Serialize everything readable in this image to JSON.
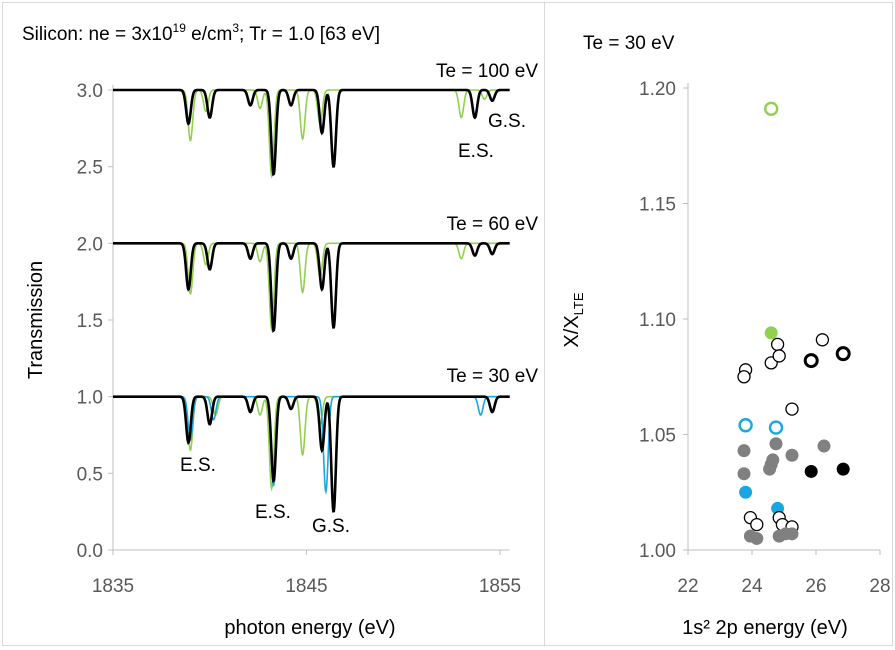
{
  "left": {
    "title": {
      "prefix": "Silicon: ne = 3x10",
      "sup": "19",
      "mid": " e/cm",
      "sup2": "3",
      "suffix": "; Tr = 1.0 [63 eV]"
    },
    "xlabel": "photon energy  (eV)",
    "ylabel": "Transmission",
    "xlim": [
      1835,
      1855.5
    ],
    "ylim": [
      0,
      3.0
    ],
    "xticks": [
      "1835",
      "1845",
      "1855"
    ],
    "yticks": [
      "0.0",
      "0.5",
      "1.0",
      "1.5",
      "2.0",
      "2.5",
      "3.0"
    ],
    "annotations": {
      "te100": "Te = 100 eV",
      "te60": "Te = 60 eV",
      "te30": "Te = 30 eV",
      "gs_top": "G.S.",
      "es_top": "E.S.",
      "es_low1": "E.S.",
      "es_low2": "E.S.",
      "gs_low": "G.S."
    }
  },
  "right": {
    "title": "Te = 30 eV",
    "xlabel": "1s² 2p energy (eV)",
    "ylabel_main": "X/X",
    "ylabel_sub": "LTE",
    "xlim": [
      22,
      28
    ],
    "ylim": [
      1.0,
      1.2
    ],
    "xticks": [
      "22",
      "24",
      "26",
      "28"
    ],
    "yticks": [
      "1.00",
      "1.05",
      "1.10",
      "1.15",
      "1.20"
    ]
  },
  "chart_data": [
    {
      "type": "line",
      "title": "Silicon: ne = 3x10^19 e/cm^3; Tr = 1.0 [63 eV]",
      "xlabel": "photon energy  (eV)",
      "ylabel": "Transmission",
      "xlim": [
        1835,
        1855.5
      ],
      "ylim": [
        0,
        3.0
      ],
      "colors": {
        "black": "#000000",
        "green": "#92d050",
        "blue": "#1aa7e0"
      },
      "panels": [
        {
          "label": "Te = 100 eV",
          "baseline": 3.0,
          "series": [
            {
              "color": "black",
              "lines": [
                [
                  1838.9,
                  0.22
                ],
                [
                  1840.0,
                  0.18
                ],
                [
                  1842.1,
                  0.1
                ],
                [
                  1843.3,
                  0.55
                ],
                [
                  1844.2,
                  0.1
                ],
                [
                  1845.8,
                  0.28
                ],
                [
                  1846.4,
                  0.5
                ],
                [
                  1853.7,
                  0.18
                ],
                [
                  1854.6,
                  0.07
                ]
              ]
            },
            {
              "color": "green",
              "lines": [
                [
                  1839.0,
                  0.33
                ],
                [
                  1839.8,
                  0.14
                ],
                [
                  1842.6,
                  0.12
                ],
                [
                  1843.2,
                  0.56
                ],
                [
                  1844.8,
                  0.32
                ],
                [
                  1845.7,
                  0.22
                ],
                [
                  1853.0,
                  0.18
                ],
                [
                  1854.2,
                  0.06
                ]
              ]
            }
          ]
        },
        {
          "label": "Te = 60 eV",
          "baseline": 2.0,
          "series": [
            {
              "color": "black",
              "lines": [
                [
                  1838.9,
                  0.3
                ],
                [
                  1840.0,
                  0.17
                ],
                [
                  1842.1,
                  0.1
                ],
                [
                  1843.3,
                  0.57
                ],
                [
                  1844.2,
                  0.1
                ],
                [
                  1845.8,
                  0.3
                ],
                [
                  1846.4,
                  0.55
                ],
                [
                  1853.7,
                  0.08
                ],
                [
                  1854.6,
                  0.07
                ]
              ]
            },
            {
              "color": "green",
              "lines": [
                [
                  1839.0,
                  0.33
                ],
                [
                  1839.8,
                  0.14
                ],
                [
                  1842.6,
                  0.12
                ],
                [
                  1843.2,
                  0.56
                ],
                [
                  1844.8,
                  0.32
                ],
                [
                  1845.7,
                  0.22
                ],
                [
                  1853.0,
                  0.1
                ]
              ]
            }
          ]
        },
        {
          "label": "Te = 30 eV",
          "baseline": 1.0,
          "series": [
            {
              "color": "black",
              "lines": [
                [
                  1838.9,
                  0.3
                ],
                [
                  1840.0,
                  0.18
                ],
                [
                  1842.1,
                  0.1
                ],
                [
                  1843.3,
                  0.55
                ],
                [
                  1844.2,
                  0.08
                ],
                [
                  1845.8,
                  0.35
                ],
                [
                  1846.4,
                  0.75
                ],
                [
                  1854.6,
                  0.1
                ]
              ]
            },
            {
              "color": "green",
              "lines": [
                [
                  1839.0,
                  0.35
                ],
                [
                  1840.3,
                  0.12
                ],
                [
                  1842.6,
                  0.12
                ],
                [
                  1843.2,
                  0.6
                ],
                [
                  1844.8,
                  0.38
                ],
                [
                  1845.7,
                  0.18
                ]
              ]
            },
            {
              "color": "blue",
              "lines": [
                [
                  1839.0,
                  0.28
                ],
                [
                  1840.2,
                  0.15
                ],
                [
                  1843.3,
                  0.58
                ],
                [
                  1846.0,
                  0.62
                ],
                [
                  1854.0,
                  0.12
                ]
              ]
            }
          ]
        }
      ]
    },
    {
      "type": "scatter",
      "title": "Te = 30 eV",
      "xlabel": "1s² 2p energy (eV)",
      "ylabel": "X/X_LTE",
      "xlim": [
        22,
        28
      ],
      "ylim": [
        1.0,
        1.2
      ],
      "points": [
        {
          "x": 24.6,
          "y": 1.191,
          "color": "#92d050",
          "filled": false
        },
        {
          "x": 24.6,
          "y": 1.094,
          "color": "#92d050",
          "filled": true
        },
        {
          "x": 23.8,
          "y": 1.078,
          "color": "#000000",
          "filled": false
        },
        {
          "x": 23.75,
          "y": 1.075,
          "color": "#000000",
          "filled": false
        },
        {
          "x": 24.6,
          "y": 1.081,
          "color": "#000000",
          "filled": false
        },
        {
          "x": 24.8,
          "y": 1.089,
          "color": "#000000",
          "filled": false
        },
        {
          "x": 24.85,
          "y": 1.084,
          "color": "#000000",
          "filled": false
        },
        {
          "x": 26.2,
          "y": 1.091,
          "color": "#000000",
          "filled": false
        },
        {
          "x": 25.85,
          "y": 1.082,
          "color": "#000000",
          "filled": false,
          "bold": true
        },
        {
          "x": 26.85,
          "y": 1.085,
          "color": "#000000",
          "filled": false,
          "bold": true
        },
        {
          "x": 25.25,
          "y": 1.061,
          "color": "#000000",
          "filled": false
        },
        {
          "x": 23.8,
          "y": 1.054,
          "color": "#1aa7e0",
          "filled": false
        },
        {
          "x": 24.75,
          "y": 1.053,
          "color": "#1aa7e0",
          "filled": false
        },
        {
          "x": 23.75,
          "y": 1.043,
          "color": "#808080",
          "filled": true
        },
        {
          "x": 24.75,
          "y": 1.046,
          "color": "#808080",
          "filled": true
        },
        {
          "x": 24.6,
          "y": 1.037,
          "color": "#808080",
          "filled": true
        },
        {
          "x": 24.65,
          "y": 1.039,
          "color": "#808080",
          "filled": true
        },
        {
          "x": 25.25,
          "y": 1.041,
          "color": "#808080",
          "filled": true
        },
        {
          "x": 26.25,
          "y": 1.045,
          "color": "#808080",
          "filled": true
        },
        {
          "x": 23.75,
          "y": 1.033,
          "color": "#808080",
          "filled": true
        },
        {
          "x": 24.55,
          "y": 1.035,
          "color": "#808080",
          "filled": true
        },
        {
          "x": 25.85,
          "y": 1.034,
          "color": "#000000",
          "filled": true
        },
        {
          "x": 26.85,
          "y": 1.035,
          "color": "#000000",
          "filled": true
        },
        {
          "x": 23.8,
          "y": 1.025,
          "color": "#1aa7e0",
          "filled": true
        },
        {
          "x": 24.8,
          "y": 1.018,
          "color": "#1aa7e0",
          "filled": true
        },
        {
          "x": 23.95,
          "y": 1.014,
          "color": "#000000",
          "filled": false
        },
        {
          "x": 24.15,
          "y": 1.011,
          "color": "#000000",
          "filled": false
        },
        {
          "x": 24.85,
          "y": 1.014,
          "color": "#000000",
          "filled": false
        },
        {
          "x": 24.95,
          "y": 1.011,
          "color": "#000000",
          "filled": false
        },
        {
          "x": 25.25,
          "y": 1.01,
          "color": "#000000",
          "filled": false
        },
        {
          "x": 23.95,
          "y": 1.006,
          "color": "#808080",
          "filled": true
        },
        {
          "x": 24.15,
          "y": 1.005,
          "color": "#808080",
          "filled": true
        },
        {
          "x": 24.85,
          "y": 1.006,
          "color": "#808080",
          "filled": true
        },
        {
          "x": 25.05,
          "y": 1.007,
          "color": "#808080",
          "filled": true
        },
        {
          "x": 25.25,
          "y": 1.007,
          "color": "#808080",
          "filled": true
        }
      ]
    }
  ]
}
